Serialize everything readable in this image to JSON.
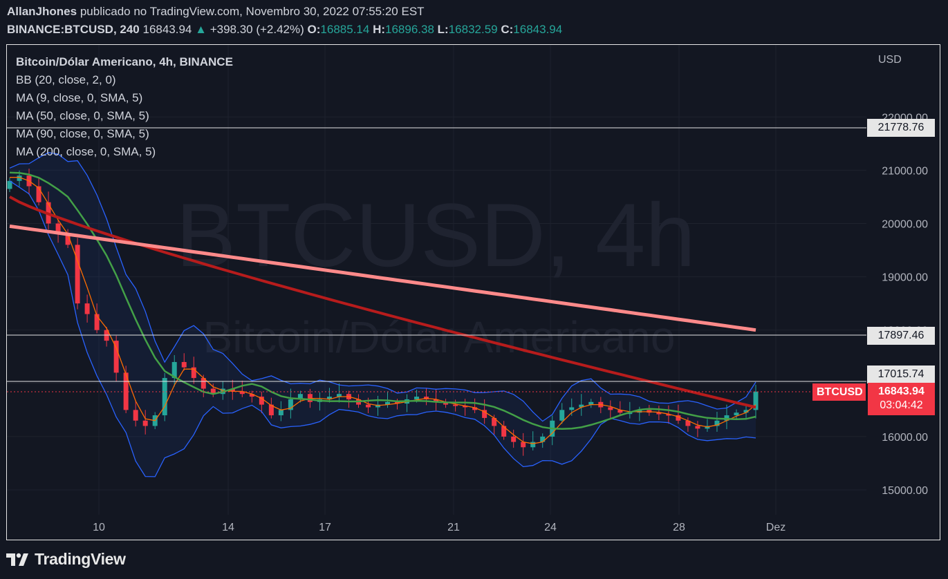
{
  "header": {
    "author": "AllanJhones",
    "published_text": "publicado no TradingView.com, Novembro 30, 2022 07:55:20 EST",
    "symbol_interval": "BINANCE:BTCUSD, 240",
    "last": "16843.94",
    "change": "+398.30 (+2.42%)",
    "o_label": "O:",
    "o": "16885.14",
    "h_label": "H:",
    "h": "16896.38",
    "l_label": "L:",
    "l": "16832.59",
    "c_label": "C:",
    "c": "16843.94"
  },
  "legend": {
    "title": "Bitcoin/Dólar Americano, 4h, BINANCE",
    "indicators": [
      "BB (20, close, 2, 0)",
      "MA (9, close, 0, SMA, 5)",
      "MA (50, close, 0, SMA, 5)",
      "MA (90, close, 0, SMA, 5)",
      "MA (200, close, 0, SMA, 5)"
    ]
  },
  "watermark": {
    "symbol": "BTCUSD, 4h",
    "name": "Bitcoin/Dólar Americano"
  },
  "axis": {
    "currency": "USD",
    "y_ticks": [
      "22000.00",
      "21000.00",
      "20000.00",
      "19000.00",
      "18000.00",
      "16000.00",
      "15000.00"
    ],
    "x_ticks": [
      "10",
      "14",
      "17",
      "21",
      "24",
      "28",
      "Dez"
    ]
  },
  "horizontal_lines": [
    "21778.76",
    "17897.46",
    "17015.74"
  ],
  "price_tag": {
    "symbol": "BTCUSD",
    "price": "16843.94",
    "countdown": "03:04:42"
  },
  "footer": {
    "brand": "TradingView"
  },
  "colors": {
    "up": "#26a69a",
    "down": "#f23645",
    "bb": "#2962ff",
    "ma9": "#ff6d00",
    "ma50": "#43a047",
    "ma90": "#b71c1c",
    "ma200": "#ff8a8a",
    "background": "#131722"
  },
  "chart_data": {
    "type": "candlestick",
    "title": "Bitcoin/Dólar Americano, 4h, BINANCE",
    "xlabel": "",
    "ylabel": "USD",
    "x_ticks": [
      "10",
      "14",
      "17",
      "21",
      "24",
      "28",
      "Dez"
    ],
    "ylim": [
      14600,
      22500
    ],
    "date_range": [
      "2022-11-08",
      "2022-11-30"
    ],
    "ohlc_close_approx": [
      20800,
      20900,
      20700,
      20400,
      20000,
      19800,
      19600,
      18500,
      18300,
      18000,
      17800,
      17200,
      16500,
      16300,
      16200,
      16400,
      17100,
      17400,
      17300,
      17100,
      16900,
      16800,
      16900,
      16850,
      16800,
      16750,
      16600,
      16400,
      16500,
      16700,
      16800,
      16650,
      16700,
      16750,
      16800,
      16700,
      16600,
      16550,
      16600,
      16650,
      16620,
      16700,
      16750,
      16700,
      16650,
      16600,
      16580,
      16550,
      16500,
      16350,
      16200,
      16000,
      15900,
      15800,
      15900,
      16000,
      16300,
      16500,
      16550,
      16600,
      16650,
      16550,
      16500,
      16450,
      16450,
      16500,
      16450,
      16420,
      16400,
      16300,
      16200,
      16150,
      16200,
      16300,
      16400,
      16450,
      16500,
      16843.94
    ],
    "series": [
      {
        "name": "BB (20, close, 2, 0)"
      },
      {
        "name": "MA (9, close, 0, SMA, 5)"
      },
      {
        "name": "MA (50, close, 0, SMA, 5)"
      },
      {
        "name": "MA (90, close, 0, SMA, 5)"
      },
      {
        "name": "MA (200, close, 0, SMA, 5)"
      }
    ],
    "horizontal_levels": [
      21778.76,
      17897.46,
      17015.74
    ],
    "last_price": 16843.94
  }
}
